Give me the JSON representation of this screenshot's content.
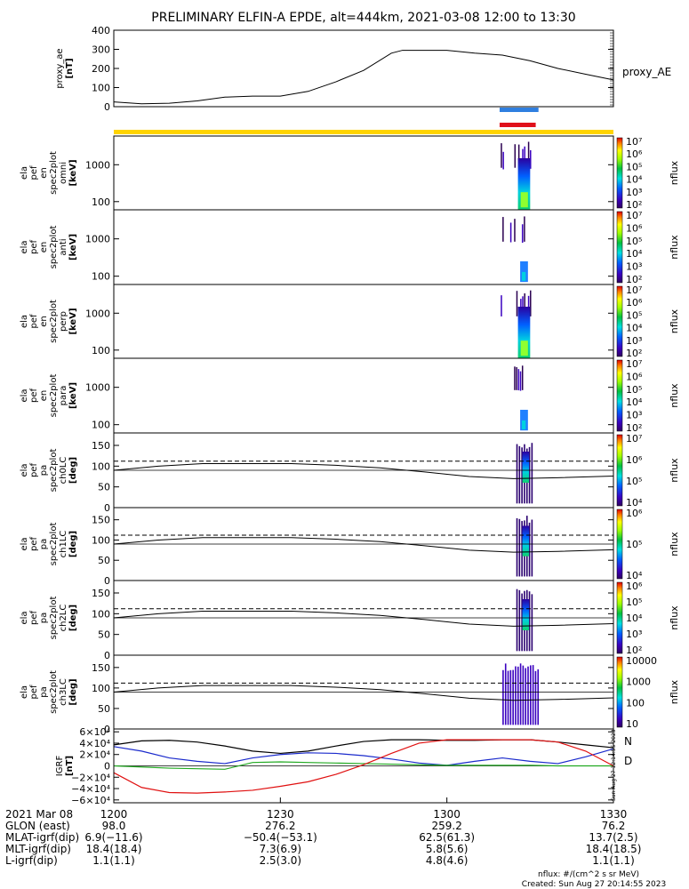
{
  "title": "PRELIMINARY ELFIN-A EPDE, alt=444km, 2021-03-08 12:00 to 13:30",
  "colors": {
    "blue_bar": "#2f7fe0",
    "red_bar": "#e0101a",
    "yellow_bar": "#ffd400",
    "bx": "#1a2acc",
    "by": "#22aa22",
    "bz": "#e01010",
    "btot": "#000000"
  },
  "chart_data": [
    {
      "name": "proxy_ae",
      "type": "line",
      "ylabel_lines": [
        "proxy_ae",
        "[nT]"
      ],
      "series_label": "proxy_AE",
      "ylim": [
        0,
        400
      ],
      "yticks": [
        "0",
        "100",
        "200",
        "300",
        "400"
      ],
      "x": [
        0,
        5,
        10,
        15,
        20,
        25,
        30,
        35,
        40,
        45,
        50,
        52,
        55,
        60,
        65,
        70,
        75,
        80,
        85,
        90
      ],
      "values": [
        25,
        15,
        18,
        30,
        50,
        55,
        55,
        80,
        130,
        190,
        280,
        295,
        295,
        295,
        280,
        270,
        240,
        200,
        170,
        140
      ]
    },
    {
      "name": "ela_pef_en_spec2plot_omni",
      "type": "heatmap",
      "ylabel_lines": [
        "ela",
        "pef",
        "en",
        "spec2plot",
        "omni",
        "[keV]"
      ],
      "ylim": [
        60,
        6000
      ],
      "yscale": "log",
      "yticks": [
        "100",
        "1000"
      ],
      "colorbar_label": "nflux",
      "colorbar_ticks": [
        "10²",
        "10³",
        "10⁴",
        "10⁵",
        "10⁶",
        "10⁷"
      ],
      "active_interval_min": [
        69,
        75
      ]
    },
    {
      "name": "ela_pef_en_spec2plot_anti",
      "type": "heatmap",
      "ylabel_lines": [
        "ela",
        "pef",
        "en",
        "spec2plot",
        "anti",
        "[keV]"
      ],
      "ylim": [
        60,
        6000
      ],
      "yscale": "log",
      "yticks": [
        "100",
        "1000"
      ],
      "colorbar_label": "nflux",
      "colorbar_ticks": [
        "10²",
        "10³",
        "10⁴",
        "10⁵",
        "10⁶",
        "10⁷"
      ],
      "active_interval_min": [
        70,
        74
      ]
    },
    {
      "name": "ela_pef_en_spec2plot_perp",
      "type": "heatmap",
      "ylabel_lines": [
        "ela",
        "pef",
        "en",
        "spec2plot",
        "perp",
        "[keV]"
      ],
      "ylim": [
        60,
        6000
      ],
      "yscale": "log",
      "yticks": [
        "100",
        "1000"
      ],
      "colorbar_label": "nflux",
      "colorbar_ticks": [
        "10²",
        "10³",
        "10⁴",
        "10⁵",
        "10⁶",
        "10⁷"
      ],
      "active_interval_min": [
        69,
        75
      ]
    },
    {
      "name": "ela_pef_en_spec2plot_para",
      "type": "heatmap",
      "ylabel_lines": [
        "ela",
        "pef",
        "en",
        "spec2plot",
        "para",
        "[keV]"
      ],
      "ylim": [
        60,
        6000
      ],
      "yscale": "log",
      "yticks": [
        "100",
        "1000"
      ],
      "colorbar_label": "nflux",
      "colorbar_ticks": [
        "10²",
        "10³",
        "10⁴",
        "10⁵",
        "10⁶",
        "10⁷"
      ],
      "active_interval_min": [
        70,
        74
      ]
    },
    {
      "name": "ela_pef_pa_spec2plot_ch0LC",
      "type": "heatmap",
      "ylabel_lines": [
        "ela",
        "pef",
        "pa",
        "spec2plot",
        "ch0LC",
        "[deg]"
      ],
      "ylim": [
        0,
        180
      ],
      "yticks": [
        "0",
        "50",
        "100",
        "150"
      ],
      "colorbar_label": "nflux",
      "colorbar_ticks": [
        "10⁴",
        "10⁵",
        "10⁶",
        "10⁷"
      ],
      "losscone_deg": [
        90,
        100,
        106,
        106,
        106,
        102,
        96,
        86,
        75,
        70,
        72,
        76
      ],
      "antilosscone_deg": [
        112,
        112,
        112,
        112,
        112,
        112,
        112,
        112,
        112,
        112,
        112,
        112
      ]
    },
    {
      "name": "ela_pef_pa_spec2plot_ch1LC",
      "type": "heatmap",
      "ylabel_lines": [
        "ela",
        "pef",
        "pa",
        "spec2plot",
        "ch1LC",
        "[deg]"
      ],
      "ylim": [
        0,
        180
      ],
      "yticks": [
        "0",
        "50",
        "100",
        "150"
      ],
      "colorbar_label": "nflux",
      "colorbar_ticks": [
        "10⁴",
        "10⁵",
        "10⁶"
      ],
      "losscone_deg": [
        90,
        100,
        106,
        106,
        106,
        102,
        96,
        86,
        75,
        70,
        72,
        76
      ],
      "antilosscone_deg": [
        112,
        112,
        112,
        112,
        112,
        112,
        112,
        112,
        112,
        112,
        112,
        112
      ]
    },
    {
      "name": "ela_pef_pa_spec2plot_ch2LC",
      "type": "heatmap",
      "ylabel_lines": [
        "ela",
        "pef",
        "pa",
        "spec2plot",
        "ch2LC",
        "[deg]"
      ],
      "ylim": [
        0,
        180
      ],
      "yticks": [
        "0",
        "50",
        "100",
        "150"
      ],
      "colorbar_label": "nflux",
      "colorbar_ticks": [
        "10²",
        "10³",
        "10⁴",
        "10⁵",
        "10⁶"
      ],
      "losscone_deg": [
        90,
        100,
        106,
        106,
        106,
        102,
        96,
        86,
        75,
        70,
        72,
        76
      ],
      "antilosscone_deg": [
        112,
        112,
        112,
        112,
        112,
        112,
        112,
        112,
        112,
        112,
        112,
        112
      ]
    },
    {
      "name": "ela_pef_pa_spec2plot_ch3LC",
      "type": "heatmap",
      "ylabel_lines": [
        "ela",
        "pef",
        "pa",
        "spec2plot",
        "ch3LC",
        "[deg]"
      ],
      "ylim": [
        0,
        180
      ],
      "yticks": [
        "0",
        "50",
        "100",
        "150"
      ],
      "colorbar_label": "nflux",
      "colorbar_ticks": [
        "10",
        "100",
        "1000",
        "10000"
      ],
      "losscone_deg": [
        90,
        100,
        106,
        106,
        106,
        102,
        96,
        86,
        75,
        70,
        72,
        76
      ],
      "antilosscone_deg": [
        112,
        112,
        112,
        112,
        112,
        112,
        112,
        112,
        112,
        112,
        112,
        112
      ]
    },
    {
      "name": "igrf",
      "type": "line",
      "ylabel_lines": [
        "IGRF",
        "[nT]"
      ],
      "ylim": [
        -65000,
        65000
      ],
      "yticks": [
        "−6×10⁴",
        "−4×10⁴",
        "−2×10⁴",
        "0",
        "2×10⁴",
        "4×10⁴",
        "6×10⁴"
      ],
      "ytick_values": [
        -60000,
        -40000,
        -20000,
        0,
        20000,
        40000,
        60000
      ],
      "legend": [
        "N",
        "D"
      ],
      "side_stamp": "Sun Aug 27 12:14:55 2023",
      "x": [
        0,
        5,
        10,
        15,
        20,
        25,
        30,
        35,
        40,
        45,
        50,
        55,
        60,
        65,
        70,
        75,
        80,
        85,
        90
      ],
      "series": [
        {
          "color": "#000000",
          "values": [
            37000,
            44000,
            45000,
            42000,
            35000,
            26000,
            22000,
            26000,
            35000,
            43000,
            46000,
            46000,
            45000,
            45000,
            46000,
            46000,
            42000,
            37000,
            32000
          ]
        },
        {
          "color": "#1a2acc",
          "values": [
            34000,
            26000,
            14000,
            8000,
            4000,
            14000,
            20000,
            23000,
            22000,
            18000,
            12000,
            5000,
            1000,
            8000,
            14000,
            8000,
            4000,
            16000,
            30000
          ]
        },
        {
          "color": "#22aa22",
          "values": [
            0,
            -2000,
            -4000,
            -5000,
            -6000,
            6000,
            7000,
            6000,
            5000,
            4000,
            3000,
            2000,
            1000,
            1000,
            1000,
            1000,
            0,
            0,
            0
          ]
        },
        {
          "color": "#e01010",
          "values": [
            -12000,
            -38000,
            -47000,
            -48000,
            -46000,
            -43000,
            -36000,
            -28000,
            -15000,
            2000,
            22000,
            40000,
            46000,
            46000,
            46000,
            46000,
            42000,
            26000,
            0
          ]
        }
      ]
    }
  ],
  "xticks": [
    "1200",
    "1230",
    "1300",
    "1330"
  ],
  "xtick_minutes": [
    0,
    30,
    60,
    90
  ],
  "footer_rows": [
    {
      "label": "2021 Mar 08",
      "values": [
        "1200",
        "1230",
        "1300",
        "1330"
      ]
    },
    {
      "label": "GLON (east)",
      "values": [
        "98.0",
        "276.2",
        "259.2",
        "76.2"
      ]
    },
    {
      "label": "MLAT-igrf(dip)",
      "values": [
        "6.9(−11.6)",
        "−50.4(−53.1)",
        "62.5(61.3)",
        "13.7(2.5)"
      ]
    },
    {
      "label": "MLT-igrf(dip)",
      "values": [
        "18.4(18.4)",
        "7.3(6.9)",
        "5.8(5.6)",
        "18.4(18.5)"
      ]
    },
    {
      "label": "L-igrf(dip)",
      "values": [
        "1.1(1.1)",
        "2.5(3.0)",
        "4.8(4.6)",
        "1.1(1.1)"
      ]
    }
  ],
  "footnote_units": "nflux: #/(cm^2 s sr MeV)",
  "footnote_created": "Created: Sun Aug 27 20:14:55 2023"
}
